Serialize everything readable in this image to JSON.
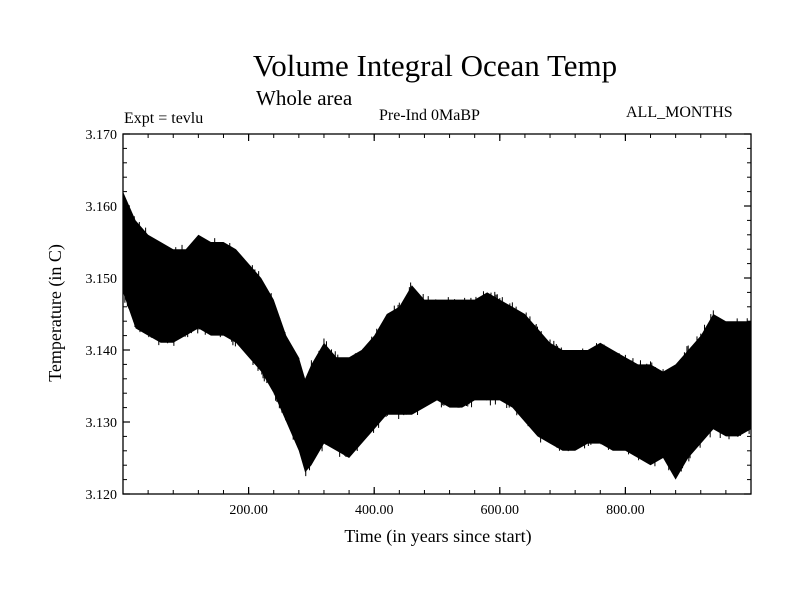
{
  "chart_data": {
    "type": "line",
    "title": "Volume Integral Ocean Temp",
    "subtitle": "Whole area",
    "annotations": {
      "experiment": "Expt = tevlu",
      "period": "Pre-Ind 0MaBP",
      "months": "ALL_MONTHS"
    },
    "xlabel": "Time (in years since start)",
    "ylabel": "Temperature (in C)",
    "xlim": [
      0,
      1000
    ],
    "ylim": [
      3.12,
      3.17
    ],
    "x_ticks": [
      200,
      400,
      600,
      800
    ],
    "x_tick_labels": [
      "200.00",
      "400.00",
      "600.00",
      "800.00"
    ],
    "y_ticks": [
      3.12,
      3.13,
      3.14,
      3.15,
      3.16,
      3.17
    ],
    "y_tick_labels": [
      "3.120",
      "3.130",
      "3.140",
      "3.150",
      "3.160",
      "3.170"
    ],
    "grid": false,
    "series": [
      {
        "name": "Volume integral ocean temperature",
        "color": "#000000",
        "envelope_x": [
          0,
          20,
          40,
          60,
          80,
          100,
          120,
          140,
          160,
          180,
          200,
          220,
          240,
          260,
          280,
          290,
          300,
          320,
          340,
          360,
          380,
          400,
          420,
          440,
          460,
          480,
          500,
          520,
          540,
          560,
          580,
          600,
          620,
          640,
          660,
          680,
          700,
          720,
          740,
          760,
          780,
          800,
          820,
          840,
          860,
          880,
          900,
          920,
          940,
          960,
          980,
          1000
        ],
        "envelope_max": [
          3.162,
          3.158,
          3.156,
          3.155,
          3.154,
          3.154,
          3.156,
          3.155,
          3.155,
          3.154,
          3.152,
          3.15,
          3.147,
          3.142,
          3.139,
          3.136,
          3.138,
          3.141,
          3.139,
          3.139,
          3.14,
          3.142,
          3.145,
          3.146,
          3.149,
          3.147,
          3.147,
          3.147,
          3.147,
          3.147,
          3.148,
          3.147,
          3.146,
          3.145,
          3.143,
          3.141,
          3.14,
          3.14,
          3.14,
          3.141,
          3.14,
          3.139,
          3.138,
          3.138,
          3.137,
          3.138,
          3.14,
          3.142,
          3.145,
          3.144,
          3.144,
          3.144
        ],
        "envelope_min": [
          3.148,
          3.143,
          3.142,
          3.141,
          3.141,
          3.142,
          3.143,
          3.142,
          3.142,
          3.141,
          3.139,
          3.137,
          3.134,
          3.13,
          3.126,
          3.123,
          3.124,
          3.127,
          3.126,
          3.125,
          3.127,
          3.129,
          3.131,
          3.131,
          3.131,
          3.132,
          3.133,
          3.132,
          3.132,
          3.133,
          3.133,
          3.133,
          3.132,
          3.13,
          3.128,
          3.127,
          3.126,
          3.126,
          3.127,
          3.127,
          3.126,
          3.126,
          3.125,
          3.124,
          3.125,
          3.122,
          3.125,
          3.127,
          3.129,
          3.128,
          3.128,
          3.129
        ]
      }
    ]
  }
}
